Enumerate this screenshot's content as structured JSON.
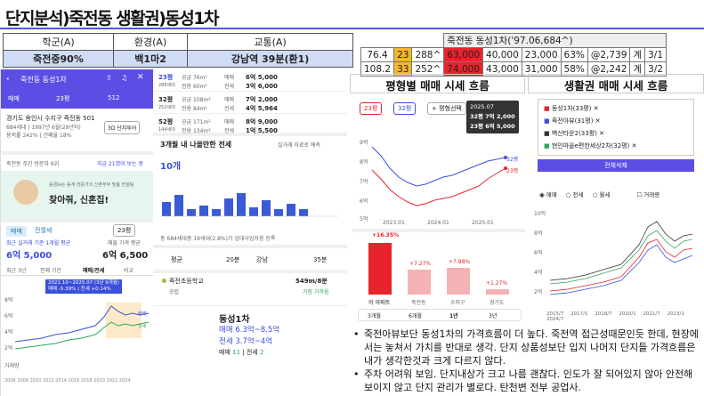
{
  "title": "단지분석)죽전동 생활권)동성1차",
  "info": {
    "headers": [
      "학군(A)",
      "환경(A)",
      "교통(A)"
    ],
    "values": [
      "죽전중90%",
      "백1마2",
      "강남역 39분(환1)"
    ]
  },
  "price": {
    "title": "죽전동 동성1차('97.06,684^)",
    "rows": [
      [
        "76.4",
        "23",
        "288^",
        "63,000",
        "40,000",
        "23,000",
        "63%",
        "@2,739",
        "계",
        "3/1"
      ],
      [
        "108.2",
        "33",
        "252^",
        "74,000",
        "43,000",
        "31,000",
        "58%",
        "@2,242",
        "계",
        "3/2"
      ]
    ]
  },
  "sections": {
    "left": "평형별 매매 시세 흐름",
    "right": "생활권 매매 시세 흐름"
  },
  "left_app": {
    "header": "죽전동 동성1차",
    "tab_sale": "매매",
    "tab_size": "23평",
    "count": "512",
    "addr": "경기도 용인시 수지구 죽전동 501",
    "meta1": "684세대 | 1997년 6월(29년차)",
    "meta2": "용적률 242% | 건폐율 18%",
    "btn3d": "3D 단지투어",
    "visits": "죽전동 주간 방문자 6위",
    "visits_r": "지금 21명이 보는 중",
    "banner_small": "동경뉴논 동계 전문가의 신혼부부 맞춤 컨설팅",
    "banner": "찾아줘, 신혼집!",
    "tabs": [
      "매매",
      "전월세"
    ],
    "sel": "23평",
    "lbl_avg": "최근 실거래 기준 1개월 평균",
    "avg": "6억 5,000",
    "lbl_ask": "매물 가격 평균",
    "ask": "6억 6,500",
    "periods": [
      "최근 3년",
      "전체 기간",
      "매매/전세",
      "비교"
    ],
    "tip1": "2021.10~2025.07 (3년 9개월)",
    "tip2": "매매 -5.39% | 전세 +0.14%",
    "yv": [
      "8억",
      "6억",
      "4억",
      "2억"
    ],
    "xl": "2006 2008 2010 2012 2014 2016 2018 2020 2022 2024",
    "lbl_vol": "거래량"
  },
  "mid_app": {
    "rows": [
      {
        "p": "23평",
        "a": "공급 76m²",
        "b": "전용 60m²",
        "t1": "매매",
        "v1": "6억 5,000",
        "t2": "전세",
        "v2": "3억 6,000",
        "s": "288세대"
      },
      {
        "p": "32평",
        "a": "공급 108m²",
        "b": "전용 84m²",
        "t1": "매매",
        "v1": "7억 2,000",
        "t2": "전세",
        "v2": "4억 5,964",
        "s": "252세대"
      },
      {
        "p": "52평",
        "a": "공급 171m²",
        "b": "전용 134m²",
        "t1": "매매",
        "v1": "8억 9,000",
        "t2": "전세",
        "v2": "1억 5,500",
        "s": "144세대"
      }
    ],
    "h": "3개월 내 나올만한 전세",
    "h_r": "실거래 자료로 예측",
    "cnt": "10개",
    "note": "총 684세대중 19세대(2.8%)가 임대사업자용 등록",
    "sel1": "평균",
    "sel1v": "20분",
    "sel2": "강남",
    "sel2v": "35분",
    "school": "죽전초등학교",
    "school_sub": "공립",
    "dist": "549m/8분",
    "dist_sub": "가장 가까움",
    "apt": "동성1차",
    "l1": "매매 6.3억~8.5억",
    "l2": "전세 3.7억~4억",
    "l3a": "매매",
    "l3b": "11",
    "l3c": "전세",
    "l3d": "2"
  },
  "pchart": {
    "pills": [
      "23평",
      "32평",
      "+ 평형선택"
    ],
    "tip": [
      "2025.07",
      "32평 7억 2,000",
      "23평 6억 5,000"
    ],
    "y": [
      "9억",
      "8억",
      "7억",
      "6억",
      "5억"
    ],
    "x": [
      "2023.01",
      "2024.01",
      "2025.01"
    ],
    "end": [
      "32평",
      "23평"
    ]
  },
  "bars": {
    "labels": [
      "이 아파트",
      "죽전동",
      "수지구",
      "경기도"
    ],
    "vals": [
      "+16.35%",
      "+7.27%",
      "+7.88%",
      "+1.27%"
    ],
    "tabs": [
      "3개월",
      "6개월",
      "1년",
      "3년"
    ]
  },
  "legend": {
    "items": [
      "동성1차(33평)",
      "죽전아뷰(31평)",
      "벽산타운2(33평)",
      "현인마을e편한세상2차(32평)"
    ],
    "btn": "전체삭제",
    "radios": [
      "매매",
      "전세",
      "월세"
    ],
    "chk": "거래량",
    "y": [
      "10억",
      "8억",
      "6억",
      "4억",
      "2억"
    ],
    "x": [
      "2015/7",
      "2017/1",
      "2018/7",
      "2020/1",
      "2021/7",
      "2023/1",
      "2024/7"
    ]
  },
  "notes": [
    "죽전아뷰보단 동성1차의 가격흐름이 더 높다. 죽전역 접근성때문인듯 한데, 현장에서는 놓쳐서 가치를 반대로 생각. 단지 상품성보단 입지 나머지 단지들 가격흐름은 내가 생각한것과 크게 다르지 않다.",
    "주차 어려워 보임. 단지내상가 크고 나름 괜찮다. 인도가 잘 되어있지 않아 안전해 보이지 않고 단지 관리가 별로다. 탄천변 전부 공업사."
  ],
  "colors": {
    "accent": "#5c4ee5",
    "hl_yellow": "#f5b52e",
    "hl_red": "#e8232c",
    "blue": "#3b4fd9"
  }
}
